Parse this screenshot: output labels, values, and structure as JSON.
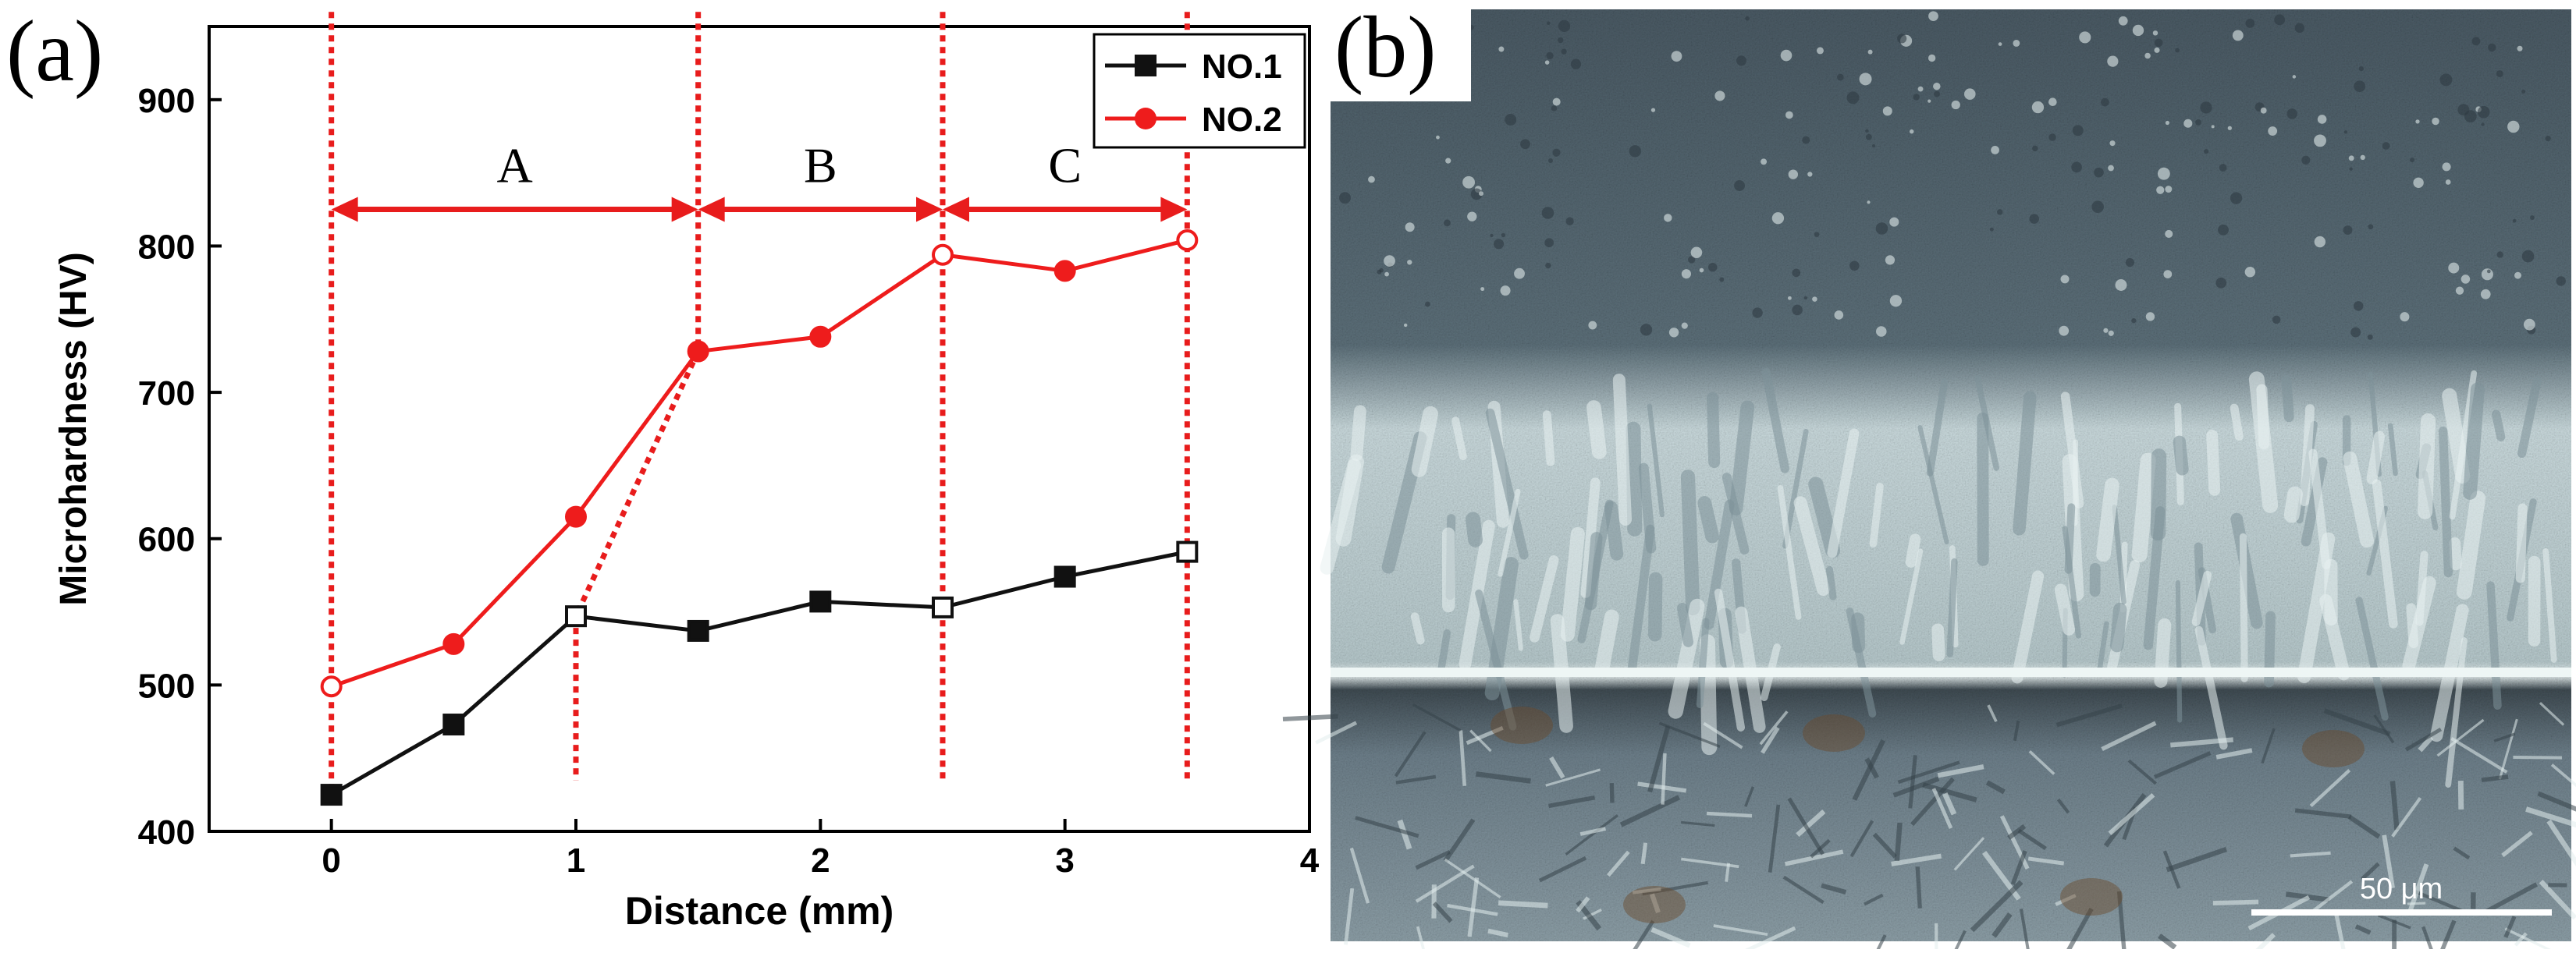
{
  "panels": {
    "a_label": "(a)",
    "b_label": "(b)"
  },
  "colors": {
    "series1": "#111111",
    "series2": "#ee1c1c",
    "annotation": "#e81c1c",
    "axis": "#000000",
    "micro_top": "#4a5a64",
    "micro_mid": "#c9d9dc",
    "micro_bottom": "#6d7f8a"
  },
  "chart_data": {
    "type": "line",
    "title": "",
    "xlabel": "Distance (mm)",
    "ylabel": "Microhardness (HV)",
    "xlim": [
      -0.5,
      4
    ],
    "ylim": [
      400,
      950
    ],
    "xticks": [
      0,
      1,
      2,
      3,
      4
    ],
    "yticks": [
      400,
      500,
      600,
      700,
      800,
      900
    ],
    "grid": false,
    "legend_position": "top-right",
    "series": [
      {
        "name": "NO.1",
        "marker": "square",
        "x": [
          0,
          0.5,
          1,
          1.5,
          2,
          2.5,
          3,
          3.5
        ],
        "y": [
          425,
          473,
          547,
          537,
          557,
          553,
          574,
          591
        ]
      },
      {
        "name": "NO.2",
        "marker": "circle",
        "x": [
          0,
          0.5,
          1,
          1.5,
          2,
          2.5,
          3,
          3.5
        ],
        "y": [
          499,
          528,
          615,
          728,
          738,
          794,
          783,
          804
        ]
      }
    ],
    "regions": [
      {
        "label": "A",
        "from": 0,
        "to": 1.5
      },
      {
        "label": "B",
        "from": 1.5,
        "to": 2.5
      },
      {
        "label": "C",
        "from": 2.5,
        "to": 3.5
      }
    ],
    "region_arrow_y": 825,
    "dashed_lines": [
      {
        "x1": 0,
        "y1": 960,
        "x2": 0,
        "y2": 425
      },
      {
        "x1": 1.5,
        "y1": 960,
        "x2": 1.5,
        "y2": 728
      },
      {
        "x1": 1.5,
        "y1": 728,
        "x2": 1,
        "y2": 547
      },
      {
        "x1": 1,
        "y1": 547,
        "x2": 1,
        "y2": 435
      },
      {
        "x1": 2.5,
        "y1": 960,
        "x2": 2.5,
        "y2": 435
      },
      {
        "x1": 3.5,
        "y1": 960,
        "x2": 3.5,
        "y2": 435
      }
    ]
  },
  "micrograph": {
    "scale_bar_label": "50 μm"
  }
}
